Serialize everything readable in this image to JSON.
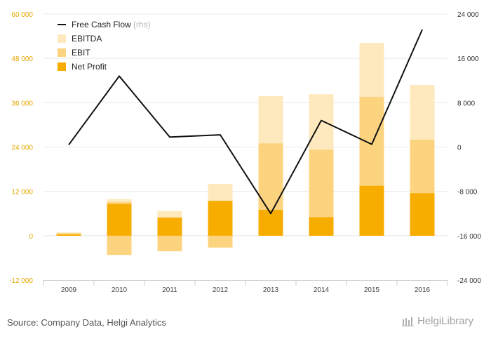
{
  "chart_data": {
    "type": "bar",
    "categories": [
      "2009",
      "2010",
      "2011",
      "2012",
      "2013",
      "2014",
      "2015",
      "2016"
    ],
    "series": [
      {
        "name": "EBITDA",
        "kind": "bar",
        "axis": "left",
        "values": [
          900,
          9900,
          6700,
          14000,
          37800,
          38300,
          52200,
          40800
        ],
        "negative_values": [
          0,
          -5200,
          -4200,
          -3200,
          0,
          0,
          0,
          0
        ]
      },
      {
        "name": "EBIT",
        "kind": "bar",
        "axis": "left",
        "values": [
          600,
          9100,
          5100,
          9500,
          25000,
          23300,
          37600,
          26000
        ],
        "negative_values": [
          0,
          -5200,
          -4200,
          -3200,
          0,
          0,
          0,
          0
        ]
      },
      {
        "name": "Net Profit",
        "kind": "bar",
        "axis": "left",
        "values": [
          400,
          8600,
          4800,
          9400,
          7000,
          5000,
          13500,
          11500
        ]
      },
      {
        "name": "Free Cash Flow",
        "kind": "line",
        "axis": "right",
        "legend_suffix": "(rhs)",
        "values": [
          400,
          12800,
          1800,
          2200,
          -12000,
          4800,
          500,
          21200
        ]
      }
    ],
    "y_left": {
      "min": -12000,
      "max": 60000,
      "ticks": [
        "-12 000",
        "0",
        "12 000",
        "24 000",
        "36 000",
        "48 000",
        "60 000"
      ]
    },
    "y_right": {
      "min": -24000,
      "max": 24000,
      "ticks": [
        "-24 000",
        "-16 000",
        "-8 000",
        "0",
        "8 000",
        "16 000",
        "24 000"
      ]
    },
    "legend_position": "top-left",
    "grid": true,
    "colors": {
      "ebitda": "#fde9bd",
      "ebit": "#fcd47f",
      "net_profit": "#f7ac00",
      "line": "#111111",
      "left_axis": "#e6a800",
      "right_axis": "#333333",
      "grid": "#e8e8e8",
      "rhs_note": "#b5b5b5"
    }
  },
  "footer": {
    "source": "Source: Company Data, Helgi Analytics",
    "brand": "HelgiLibrary"
  }
}
